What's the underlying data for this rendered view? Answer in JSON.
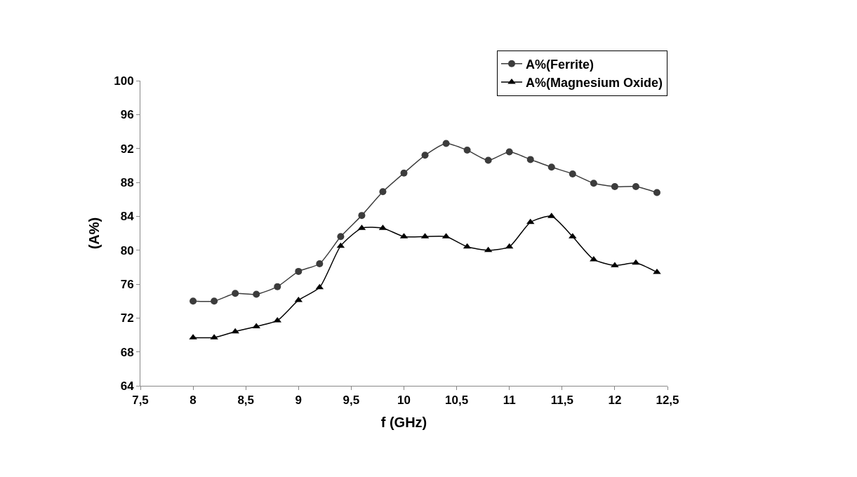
{
  "chart_data": {
    "type": "line",
    "xlabel": "f (GHz)",
    "ylabel": "(A%)",
    "x": [
      8,
      8.2,
      8.4,
      8.6,
      8.8,
      9,
      9.2,
      9.4,
      9.6,
      9.8,
      10,
      10.2,
      10.4,
      10.6,
      10.8,
      11,
      11.2,
      11.4,
      11.6,
      11.8,
      12,
      12.2,
      12.4
    ],
    "series": [
      {
        "name": "A%(Ferrite)",
        "color": "#3c3c3c",
        "marker": "circle",
        "values": [
          74.0,
          74.0,
          74.9,
          74.8,
          75.7,
          77.5,
          78.4,
          81.6,
          84.1,
          86.9,
          89.1,
          91.2,
          92.6,
          91.8,
          90.6,
          91.6,
          90.7,
          89.8,
          89.0,
          87.9,
          87.5,
          87.5,
          86.8
        ]
      },
      {
        "name": "A%(Magnesium Oxide)",
        "color": "#000000",
        "marker": "triangle",
        "values": [
          69.7,
          69.7,
          70.4,
          71.0,
          71.7,
          74.1,
          75.6,
          80.5,
          82.6,
          82.6,
          81.6,
          81.6,
          81.6,
          80.4,
          80.0,
          80.4,
          83.3,
          84.0,
          81.6,
          78.9,
          78.2,
          78.5,
          77.4
        ]
      }
    ],
    "xlim": [
      7.5,
      12.5
    ],
    "xticks": [
      {
        "value": 7.5,
        "label": "7,5"
      },
      8,
      {
        "value": 8.5,
        "label": "8,5"
      },
      9,
      {
        "value": 9.5,
        "label": "9,5"
      },
      10,
      {
        "value": 10.5,
        "label": "10,5"
      },
      11,
      {
        "value": 11.5,
        "label": "11,5"
      },
      12,
      {
        "value": 12.5,
        "label": "12,5"
      }
    ],
    "ylim": [
      64,
      100
    ],
    "yticks": [
      64,
      68,
      72,
      76,
      80,
      84,
      88,
      92,
      96,
      100
    ],
    "legend": "top right",
    "line_style": "solid"
  }
}
